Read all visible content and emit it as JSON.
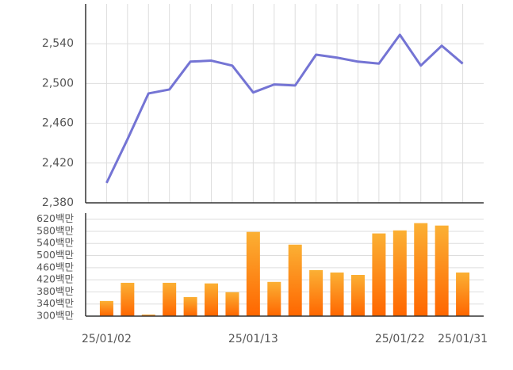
{
  "chart_data": [
    {
      "type": "line",
      "color": "#7474d4",
      "grid": true,
      "values": [
        2400,
        2444,
        2490,
        2494,
        2522,
        2523,
        2518,
        2491,
        2499,
        2498,
        2529,
        2526,
        2522,
        2520,
        2549,
        2518,
        2538,
        2520
      ],
      "ylim": [
        2380,
        2580
      ],
      "yticks": [
        {
          "value": 2380,
          "label": "2,380"
        },
        {
          "value": 2420,
          "label": "2,420"
        },
        {
          "value": 2460,
          "label": "2,460"
        },
        {
          "value": 2500,
          "label": "2,500"
        },
        {
          "value": 2540,
          "label": "2,540"
        }
      ]
    },
    {
      "type": "bar",
      "gradient": [
        "#fbb034",
        "#ff6600"
      ],
      "grid": true,
      "categories": [
        "25/01/02",
        null,
        null,
        null,
        null,
        null,
        null,
        "25/01/13",
        null,
        null,
        null,
        null,
        null,
        null,
        "25/01/22",
        null,
        null,
        "25/01/31"
      ],
      "values": [
        350,
        410,
        305,
        410,
        363,
        408,
        379,
        578,
        413,
        536,
        452,
        444,
        436,
        573,
        583,
        607,
        599,
        444
      ],
      "ylim": [
        300,
        640
      ],
      "yticks": [
        {
          "value": 300,
          "label": "300백만"
        },
        {
          "value": 340,
          "label": "340백만"
        },
        {
          "value": 380,
          "label": "380백만"
        },
        {
          "value": 420,
          "label": "420백만"
        },
        {
          "value": 460,
          "label": "460백만"
        },
        {
          "value": 500,
          "label": "500백만"
        },
        {
          "value": 540,
          "label": "540백만"
        },
        {
          "value": 580,
          "label": "580백만"
        },
        {
          "value": 620,
          "label": "620백만"
        }
      ]
    }
  ]
}
